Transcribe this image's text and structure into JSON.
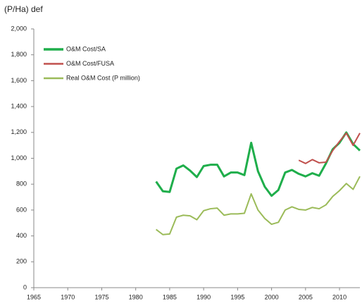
{
  "chart_data": {
    "type": "line",
    "title": "(P/Ha) def",
    "x": [
      1983,
      1984,
      1985,
      1986,
      1987,
      1988,
      1989,
      1990,
      1991,
      1992,
      1993,
      1994,
      1995,
      1996,
      1997,
      1998,
      1999,
      2000,
      2001,
      2002,
      2003,
      2004,
      2005,
      2006,
      2007,
      2008,
      2009,
      2010,
      2011,
      2012,
      2013
    ],
    "series": [
      {
        "name": "O&M Cost/SA",
        "color": "#1fae4b",
        "width": 3,
        "values": [
          820,
          745,
          740,
          920,
          945,
          905,
          855,
          940,
          950,
          950,
          860,
          890,
          890,
          870,
          1120,
          900,
          780,
          710,
          755,
          890,
          910,
          880,
          860,
          885,
          865,
          960,
          1070,
          1120,
          1200,
          1110,
          1060
        ]
      },
      {
        "name": "O&M Cost/FUSA",
        "color": "#c0504d",
        "width": 2,
        "values": [
          null,
          null,
          null,
          null,
          null,
          null,
          null,
          null,
          null,
          null,
          null,
          null,
          null,
          null,
          null,
          null,
          null,
          null,
          null,
          null,
          null,
          985,
          960,
          990,
          965,
          970,
          1060,
          1130,
          1195,
          1100,
          1195
        ]
      },
      {
        "name": "Real O&M Cost (P million)",
        "color": "#9bbb59",
        "width": 2,
        "values": [
          450,
          410,
          415,
          545,
          560,
          555,
          525,
          595,
          610,
          615,
          560,
          570,
          570,
          575,
          725,
          600,
          535,
          490,
          505,
          600,
          625,
          605,
          600,
          620,
          610,
          640,
          705,
          750,
          805,
          760,
          860
        ]
      }
    ],
    "xlim": [
      1965,
      2013
    ],
    "xticks": [
      1965,
      1970,
      1975,
      1980,
      1985,
      1990,
      1995,
      2000,
      2005,
      2010
    ],
    "ylim": [
      0,
      2000
    ],
    "yticks": [
      0,
      200,
      400,
      600,
      800,
      {
        "value": 1000,
        "label": "1,000"
      },
      {
        "value": 1200,
        "label": "1,200"
      },
      {
        "value": 1400,
        "label": "1,400"
      },
      {
        "value": 1600,
        "label": "1,600"
      },
      {
        "value": 1800,
        "label": "1,800"
      },
      {
        "value": 2000,
        "label": "2,000"
      }
    ]
  }
}
